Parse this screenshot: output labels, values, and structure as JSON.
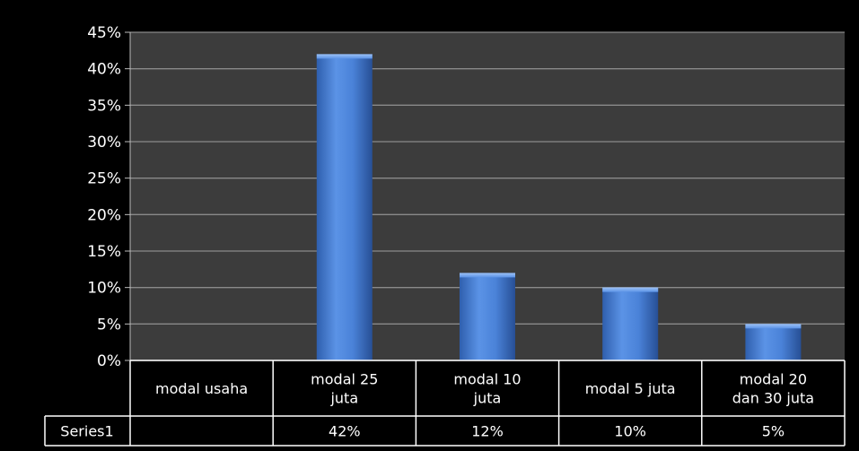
{
  "chart_data": {
    "type": "bar",
    "categories": [
      "modal usaha",
      "modal 25 juta",
      "modal 10 juta",
      "modal 5 juta",
      "modal 20 dan 30 juta"
    ],
    "category_lines": [
      [
        "modal usaha"
      ],
      [
        "modal 25",
        "juta"
      ],
      [
        "modal 10",
        "juta"
      ],
      [
        "modal 5 juta"
      ],
      [
        "modal 20",
        "dan 30 juta"
      ]
    ],
    "series": [
      {
        "name": "Series1",
        "values": [
          null,
          42,
          12,
          10,
          5
        ],
        "labels": [
          "",
          "42%",
          "12%",
          "10%",
          "5%"
        ],
        "color": "#4a7fd0"
      }
    ],
    "ylim": [
      0,
      45
    ],
    "yticks": [
      0,
      5,
      10,
      15,
      20,
      25,
      30,
      35,
      40,
      45
    ],
    "ytick_labels": [
      "0%",
      "5%",
      "10%",
      "15%",
      "20%",
      "25%",
      "30%",
      "35%",
      "40%",
      "45%"
    ],
    "grid": true,
    "plot_background": "#3c3c3c",
    "background": "#000000",
    "data_table": true
  }
}
